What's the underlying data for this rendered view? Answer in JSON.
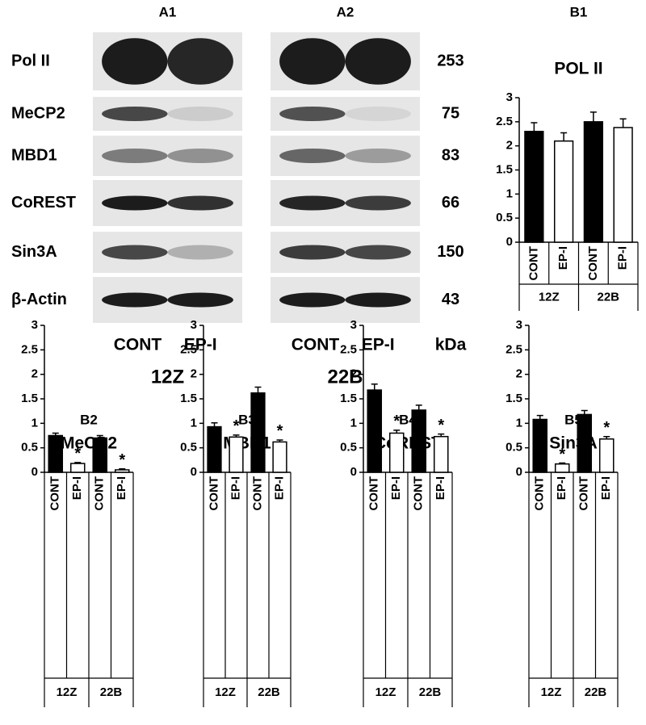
{
  "blots": {
    "panels": [
      "A1",
      "A2"
    ],
    "proteins": [
      "Pol II",
      "MeCP2",
      "MBD1",
      "CoREST",
      "Sin3A",
      "β-Actin"
    ],
    "kda": [
      253,
      75,
      83,
      66,
      150,
      43
    ],
    "kda_label": "kDa",
    "lanes": [
      "CONT",
      "EP-I"
    ],
    "cell_lines": [
      "12Z",
      "22B"
    ]
  },
  "chart_data": [
    {
      "type": "bar",
      "panel": "B1",
      "title": "POL II",
      "categories": [
        "CONT",
        "EP-I",
        "CONT",
        "EP-I"
      ],
      "groups": [
        "12Z",
        "22B"
      ],
      "values": [
        2.3,
        2.1,
        2.5,
        2.38
      ],
      "errors": [
        0.18,
        0.17,
        0.2,
        0.18
      ],
      "colors": [
        "#000000",
        "#ffffff",
        "#000000",
        "#ffffff"
      ],
      "significant": [
        false,
        false,
        false,
        false
      ],
      "significance_label": "*",
      "ylim": [
        0,
        3
      ],
      "yticks": [
        0,
        0.5,
        1,
        1.5,
        2,
        2.5,
        3
      ]
    },
    {
      "type": "bar",
      "panel": "B2",
      "title": "MeCP2",
      "categories": [
        "CONT",
        "EP-I",
        "CONT",
        "EP-I"
      ],
      "groups": [
        "12Z",
        "22B"
      ],
      "values": [
        0.75,
        0.18,
        0.7,
        0.05
      ],
      "errors": [
        0.05,
        0.02,
        0.05,
        0.02
      ],
      "colors": [
        "#000000",
        "#ffffff",
        "#000000",
        "#ffffff"
      ],
      "significant": [
        false,
        true,
        false,
        true
      ],
      "significance_label": "*",
      "ylim": [
        0,
        3
      ],
      "yticks": [
        0,
        0.5,
        1,
        1.5,
        2,
        2.5,
        3
      ]
    },
    {
      "type": "bar",
      "panel": "B3",
      "title": "MBD1",
      "categories": [
        "CONT",
        "EP-I",
        "CONT",
        "EP-I"
      ],
      "groups": [
        "12Z",
        "22B"
      ],
      "values": [
        0.93,
        0.72,
        1.62,
        0.62
      ],
      "errors": [
        0.08,
        0.04,
        0.12,
        0.04
      ],
      "colors": [
        "#000000",
        "#ffffff",
        "#000000",
        "#ffffff"
      ],
      "significant": [
        false,
        true,
        false,
        true
      ],
      "significance_label": "*",
      "ylim": [
        0,
        3
      ],
      "yticks": [
        0,
        0.5,
        1,
        1.5,
        2,
        2.5,
        3
      ]
    },
    {
      "type": "bar",
      "panel": "B4",
      "title": "CoREST",
      "categories": [
        "CONT",
        "EP-I",
        "CONT",
        "EP-I"
      ],
      "groups": [
        "12Z",
        "22B"
      ],
      "values": [
        1.68,
        0.8,
        1.27,
        0.73
      ],
      "errors": [
        0.12,
        0.06,
        0.1,
        0.05
      ],
      "colors": [
        "#000000",
        "#ffffff",
        "#000000",
        "#ffffff"
      ],
      "significant": [
        false,
        true,
        false,
        true
      ],
      "significance_label": "*",
      "ylim": [
        0,
        3
      ],
      "yticks": [
        0,
        0.5,
        1,
        1.5,
        2,
        2.5,
        3
      ]
    },
    {
      "type": "bar",
      "panel": "B5",
      "title": "Sin3A",
      "categories": [
        "CONT",
        "EP-I",
        "CONT",
        "EP-I"
      ],
      "groups": [
        "12Z",
        "22B"
      ],
      "values": [
        1.08,
        0.17,
        1.18,
        0.68
      ],
      "errors": [
        0.08,
        0.02,
        0.08,
        0.05
      ],
      "colors": [
        "#000000",
        "#ffffff",
        "#000000",
        "#ffffff"
      ],
      "significant": [
        false,
        true,
        false,
        true
      ],
      "significance_label": "*",
      "ylim": [
        0,
        3
      ],
      "yticks": [
        0,
        0.5,
        1,
        1.5,
        2,
        2.5,
        3
      ]
    }
  ]
}
